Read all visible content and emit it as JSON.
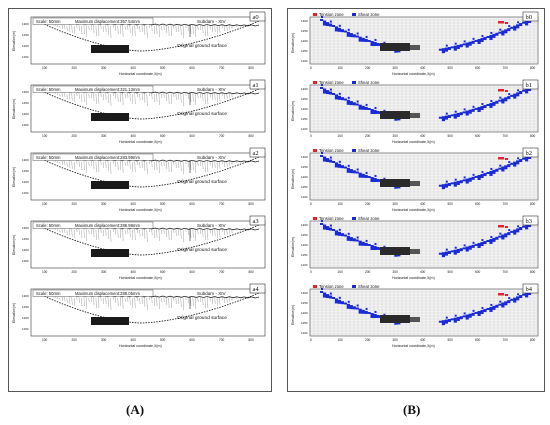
{
  "left_panel": {
    "caption": "(A)",
    "subpanels": [
      {
        "id": "a0",
        "scale": "Scale:",
        "scale_value": "50mm",
        "max_disp": "Maximum displacement:357.54mm",
        "subdam": "Subdam - XIV",
        "ground": "Original ground surface",
        "xlabel": "Horizontal coordinate,X(m)",
        "ylabel": "Elevation(m)"
      },
      {
        "id": "a1",
        "scale": "Scale:",
        "scale_value": "50mm",
        "max_disp": "Maximum displacement:321.13mm",
        "subdam": "Subdam - XIV",
        "ground": "Original ground surface",
        "xlabel": "Horizontal coordinate,X(m)",
        "ylabel": "Elevation(m)"
      },
      {
        "id": "a2",
        "scale": "Scale:",
        "scale_value": "50mm",
        "max_disp": "Maximum displacement:283.99mm",
        "subdam": "Subdam - XIV",
        "ground": "Original ground surface",
        "xlabel": "Horizontal coordinate,X(m)",
        "ylabel": "Elevation(m)"
      },
      {
        "id": "a3",
        "scale": "Scale:",
        "scale_value": "50mm",
        "max_disp": "Maximum displacement:286.98mm",
        "subdam": "Subdam - XIV",
        "ground": "Original ground surface",
        "xlabel": "Horizontal coordinate,X(m)",
        "ylabel": "Elevation(m)"
      },
      {
        "id": "a4",
        "scale": "Scale:",
        "scale_value": "50mm",
        "max_disp": "Maximum displacement:288.05mm",
        "subdam": "Subdam - XIV",
        "ground": "Original ground surface",
        "xlabel": "Horizontal coordinate,X(m)",
        "ylabel": "Elevation(m)"
      }
    ],
    "x_ticks": [
      "100",
      "200",
      "300",
      "400",
      "500",
      "600",
      "700",
      "800"
    ],
    "y_ticks": [
      "1300",
      "1250",
      "1200",
      "1150"
    ]
  },
  "right_panel": {
    "caption": "(B)",
    "legend": {
      "tension": "Tension zone",
      "shear": "Shear zone"
    },
    "colors": {
      "tension": "#e8202a",
      "shear": "#1a2bd6",
      "mesh": "#b9b9b9"
    },
    "subpanels": [
      {
        "id": "b0",
        "xlabel": "Horizontal coordinate,X(m)",
        "ylabel": "Elevation(m)"
      },
      {
        "id": "b1",
        "xlabel": "Horizontal coordinate,X(m)",
        "ylabel": "Elevation(m)"
      },
      {
        "id": "b2",
        "xlabel": "Horizontal coordinate,X(m)",
        "ylabel": "Elevation(m)"
      },
      {
        "id": "b3",
        "xlabel": "Horizontal coordinate,X(m)",
        "ylabel": "Elevation(m)"
      },
      {
        "id": "b4",
        "xlabel": "Horizontal coordinate,X(m)",
        "ylabel": "Elevation(m)"
      }
    ],
    "x_ticks": [
      "0",
      "100",
      "200",
      "300",
      "400",
      "500",
      "600",
      "700",
      "800"
    ],
    "y_ticks": [
      "1300",
      "1250",
      "1200",
      "1150",
      "1100"
    ]
  }
}
